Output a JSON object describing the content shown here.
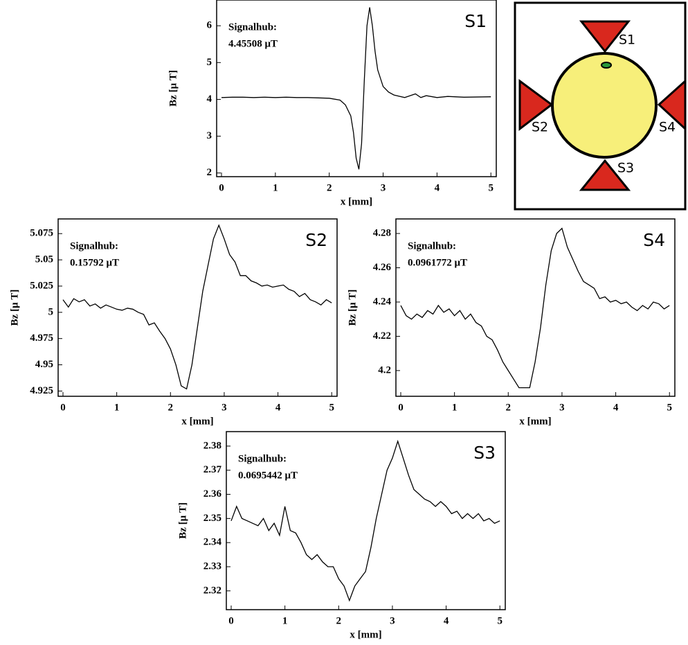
{
  "chart_data": [
    {
      "type": "line",
      "label": "S1",
      "annotation": [
        "Signalhub:",
        "4.45508  μT"
      ],
      "xlabel": "x [mm]",
      "ylabel": "Bz [μ T]",
      "color": "#000000",
      "x": [
        0,
        0.2,
        0.4,
        0.6,
        0.8,
        1.0,
        1.2,
        1.4,
        1.6,
        1.8,
        2.0,
        2.2,
        2.3,
        2.4,
        2.45,
        2.5,
        2.55,
        2.6,
        2.65,
        2.7,
        2.75,
        2.8,
        2.85,
        2.9,
        3.0,
        3.1,
        3.2,
        3.4,
        3.5,
        3.6,
        3.7,
        3.8,
        4.0,
        4.2,
        4.5,
        5.0
      ],
      "values": [
        4.05,
        4.06,
        4.06,
        4.05,
        4.06,
        4.05,
        4.06,
        4.05,
        4.05,
        4.04,
        4.03,
        3.98,
        3.85,
        3.55,
        3.1,
        2.4,
        2.1,
        2.8,
        4.5,
        6.0,
        6.5,
        6.0,
        5.3,
        4.8,
        4.35,
        4.2,
        4.12,
        4.05,
        4.1,
        4.15,
        4.05,
        4.1,
        4.05,
        4.08,
        4.06,
        4.07
      ],
      "xlim": [
        -0.09,
        5.1
      ],
      "ylim": [
        1.9,
        6.7
      ],
      "xticks": [
        0,
        1,
        2,
        3,
        4,
        5
      ],
      "yticks": [
        2,
        3,
        4,
        5,
        6
      ]
    },
    {
      "type": "line",
      "label": "S2",
      "annotation": [
        "Signalhub:",
        "0.15792  μT"
      ],
      "xlabel": "x [mm]",
      "ylabel": "Bz [μ T]",
      "color": "#000000",
      "x": [
        0,
        0.1,
        0.2,
        0.3,
        0.4,
        0.5,
        0.6,
        0.7,
        0.8,
        0.9,
        1.0,
        1.1,
        1.2,
        1.3,
        1.4,
        1.5,
        1.6,
        1.7,
        1.8,
        1.9,
        2.0,
        2.1,
        2.2,
        2.3,
        2.4,
        2.5,
        2.6,
        2.7,
        2.8,
        2.9,
        3.0,
        3.1,
        3.2,
        3.3,
        3.4,
        3.5,
        3.6,
        3.7,
        3.8,
        3.9,
        4.0,
        4.1,
        4.2,
        4.3,
        4.4,
        4.5,
        4.6,
        4.7,
        4.8,
        4.9,
        5.0
      ],
      "values": [
        5.012,
        5.005,
        5.013,
        5.01,
        5.012,
        5.006,
        5.008,
        5.004,
        5.007,
        5.005,
        5.003,
        5.002,
        5.004,
        5.003,
        5.0,
        4.998,
        4.988,
        4.99,
        4.982,
        4.975,
        4.965,
        4.95,
        4.93,
        4.927,
        4.95,
        4.985,
        5.02,
        5.045,
        5.07,
        5.083,
        5.07,
        5.055,
        5.048,
        5.035,
        5.035,
        5.03,
        5.028,
        5.025,
        5.026,
        5.024,
        5.025,
        5.026,
        5.022,
        5.02,
        5.015,
        5.018,
        5.012,
        5.01,
        5.007,
        5.012,
        5.009
      ],
      "xlim": [
        -0.09,
        5.1
      ],
      "ylim": [
        4.92,
        5.089
      ],
      "xticks": [
        0,
        1,
        2,
        3,
        4,
        5
      ],
      "yticks": [
        4.925,
        4.95,
        4.975,
        5,
        5.025,
        5.05,
        5.075
      ]
    },
    {
      "type": "line",
      "label": "S4",
      "annotation": [
        "Signalhub:",
        "0.0961772  μT"
      ],
      "xlabel": "x [mm]",
      "ylabel": "Bz [μ T]",
      "color": "#000000",
      "x": [
        0,
        0.1,
        0.2,
        0.3,
        0.4,
        0.5,
        0.6,
        0.7,
        0.8,
        0.9,
        1.0,
        1.1,
        1.2,
        1.3,
        1.4,
        1.5,
        1.6,
        1.7,
        1.8,
        1.9,
        2.0,
        2.1,
        2.2,
        2.3,
        2.4,
        2.5,
        2.6,
        2.7,
        2.8,
        2.9,
        3.0,
        3.1,
        3.2,
        3.3,
        3.4,
        3.5,
        3.6,
        3.7,
        3.8,
        3.9,
        4.0,
        4.1,
        4.2,
        4.3,
        4.4,
        4.5,
        4.6,
        4.7,
        4.8,
        4.9,
        5.0
      ],
      "values": [
        4.238,
        4.232,
        4.23,
        4.233,
        4.231,
        4.235,
        4.233,
        4.238,
        4.234,
        4.236,
        4.232,
        4.235,
        4.23,
        4.233,
        4.228,
        4.226,
        4.22,
        4.218,
        4.212,
        4.205,
        4.2,
        4.195,
        4.19,
        4.19,
        4.19,
        4.205,
        4.225,
        4.25,
        4.27,
        4.28,
        4.283,
        4.272,
        4.265,
        4.258,
        4.252,
        4.25,
        4.248,
        4.242,
        4.243,
        4.24,
        4.241,
        4.239,
        4.24,
        4.237,
        4.235,
        4.238,
        4.236,
        4.24,
        4.239,
        4.236,
        4.238
      ],
      "xlim": [
        -0.09,
        5.1
      ],
      "ylim": [
        4.185,
        4.2885
      ],
      "xticks": [
        0,
        1,
        2,
        3,
        4,
        5
      ],
      "yticks": [
        4.2,
        4.22,
        4.24,
        4.26,
        4.28
      ]
    },
    {
      "type": "line",
      "label": "S3",
      "annotation": [
        "Signalhub:",
        "0.0695442  μT"
      ],
      "xlabel": "x [mm]",
      "ylabel": "Bz [μ T]",
      "color": "#000000",
      "x": [
        0,
        0.1,
        0.2,
        0.3,
        0.4,
        0.5,
        0.6,
        0.7,
        0.8,
        0.9,
        1.0,
        1.1,
        1.2,
        1.3,
        1.4,
        1.5,
        1.6,
        1.7,
        1.8,
        1.9,
        2.0,
        2.1,
        2.2,
        2.3,
        2.4,
        2.5,
        2.6,
        2.7,
        2.8,
        2.9,
        3.0,
        3.1,
        3.2,
        3.3,
        3.4,
        3.5,
        3.6,
        3.7,
        3.8,
        3.9,
        4.0,
        4.1,
        4.2,
        4.3,
        4.4,
        4.5,
        4.6,
        4.7,
        4.8,
        4.9,
        5.0
      ],
      "values": [
        2.349,
        2.355,
        2.35,
        2.349,
        2.348,
        2.347,
        2.35,
        2.345,
        2.348,
        2.343,
        2.355,
        2.345,
        2.344,
        2.34,
        2.335,
        2.333,
        2.335,
        2.332,
        2.33,
        2.33,
        2.325,
        2.322,
        2.316,
        2.322,
        2.325,
        2.328,
        2.338,
        2.35,
        2.36,
        2.37,
        2.375,
        2.382,
        2.375,
        2.368,
        2.362,
        2.36,
        2.358,
        2.357,
        2.355,
        2.357,
        2.355,
        2.352,
        2.353,
        2.35,
        2.352,
        2.35,
        2.352,
        2.349,
        2.35,
        2.348,
        2.349
      ],
      "xlim": [
        -0.09,
        5.1
      ],
      "ylim": [
        2.3122,
        2.386
      ],
      "xticks": [
        0,
        1,
        2,
        3,
        4,
        5
      ],
      "yticks": [
        2.32,
        2.33,
        2.34,
        2.35,
        2.36,
        2.37,
        2.38
      ]
    }
  ],
  "diagram": {
    "labels": [
      "S1",
      "S2",
      "S3",
      "S4"
    ]
  }
}
